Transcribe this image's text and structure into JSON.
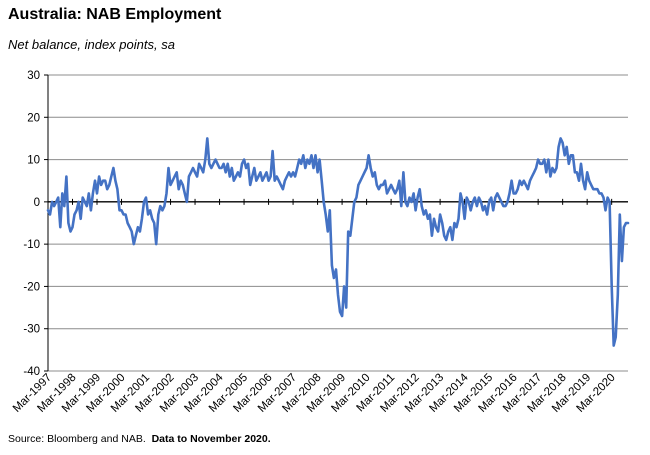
{
  "chart_data": {
    "type": "line",
    "title": "Australia: NAB Employment",
    "subtitle": "Net balance, index points, sa",
    "source_prefix": "Source: Bloomberg and NAB.",
    "source_note": "Data to November 2020.",
    "ylim": [
      -40,
      30
    ],
    "yticks": [
      30,
      20,
      10,
      0,
      -10,
      -20,
      -30,
      -40
    ],
    "x_range": [
      "1997-03",
      "2020-11"
    ],
    "xtick_labels": [
      "Mar-1997",
      "Mar-1998",
      "Mar-1999",
      "Mar-2000",
      "Mar-2001",
      "Mar-2002",
      "Mar-2003",
      "Mar-2004",
      "Mar-2005",
      "Mar-2006",
      "Mar-2007",
      "Mar-2008",
      "Mar-2009",
      "Mar-2010",
      "Mar-2011",
      "Mar-2012",
      "Mar-2013",
      "Mar-2014",
      "Mar-2015",
      "Mar-2016",
      "Mar-2017",
      "Mar-2018",
      "Mar-2019",
      "Mar-2020"
    ],
    "grid": true,
    "line_color": "#4472C4",
    "series": [
      {
        "x": [
          "1997-03",
          "1997-04",
          "1997-05",
          "1997-06",
          "1997-07",
          "1997-08",
          "1997-09",
          "1997-10",
          "1997-11",
          "1997-12",
          "1998-01",
          "1998-02",
          "1998-03",
          "1998-04",
          "1998-05",
          "1998-06",
          "1998-07",
          "1998-08",
          "1998-09",
          "1998-10",
          "1998-11",
          "1998-12",
          "1999-01",
          "1999-02",
          "1999-03",
          "1999-04",
          "1999-05",
          "1999-06",
          "1999-07",
          "1999-08",
          "1999-09",
          "1999-10",
          "1999-11",
          "1999-12",
          "2000-01",
          "2000-02",
          "2000-03",
          "2000-04",
          "2000-05",
          "2000-06",
          "2000-07",
          "2000-08",
          "2000-09",
          "2000-10",
          "2000-11",
          "2000-12",
          "2001-01",
          "2001-02",
          "2001-03",
          "2001-04",
          "2001-05",
          "2001-06",
          "2001-07",
          "2001-08",
          "2001-09",
          "2001-10",
          "2001-11",
          "2001-12",
          "2002-01",
          "2002-02",
          "2002-03",
          "2002-04",
          "2002-05",
          "2002-06",
          "2002-07",
          "2002-08",
          "2002-09",
          "2002-10",
          "2002-11",
          "2002-12",
          "2003-01",
          "2003-02",
          "2003-03",
          "2003-04",
          "2003-05",
          "2003-06",
          "2003-07",
          "2003-08",
          "2003-09",
          "2003-10",
          "2003-11",
          "2003-12",
          "2004-01",
          "2004-02",
          "2004-03",
          "2004-04",
          "2004-05",
          "2004-06",
          "2004-07",
          "2004-08",
          "2004-09",
          "2004-10",
          "2004-11",
          "2004-12",
          "2005-01",
          "2005-02",
          "2005-03",
          "2005-04",
          "2005-05",
          "2005-06",
          "2005-07",
          "2005-08",
          "2005-09",
          "2005-10",
          "2005-11",
          "2005-12",
          "2006-01",
          "2006-02",
          "2006-03",
          "2006-04",
          "2006-05",
          "2006-06",
          "2006-07",
          "2006-08",
          "2006-09",
          "2006-10",
          "2006-11",
          "2006-12",
          "2007-01",
          "2007-02",
          "2007-03",
          "2007-04",
          "2007-05",
          "2007-06",
          "2007-07",
          "2007-08",
          "2007-09",
          "2007-10",
          "2007-11",
          "2007-12",
          "2008-01",
          "2008-02",
          "2008-03",
          "2008-04",
          "2008-05",
          "2008-06",
          "2008-07",
          "2008-08",
          "2008-09",
          "2008-10",
          "2008-11",
          "2008-12",
          "2009-01",
          "2009-02",
          "2009-03",
          "2009-04",
          "2009-05",
          "2009-06",
          "2009-07",
          "2009-08",
          "2009-09",
          "2009-10",
          "2009-11",
          "2009-12",
          "2010-01",
          "2010-02",
          "2010-03",
          "2010-04",
          "2010-05",
          "2010-06",
          "2010-07",
          "2010-08",
          "2010-09",
          "2010-10",
          "2010-11",
          "2010-12",
          "2011-01",
          "2011-02",
          "2011-03",
          "2011-04",
          "2011-05",
          "2011-06",
          "2011-07",
          "2011-08",
          "2011-09",
          "2011-10",
          "2011-11",
          "2011-12",
          "2012-01",
          "2012-02",
          "2012-03",
          "2012-04",
          "2012-05",
          "2012-06",
          "2012-07",
          "2012-08",
          "2012-09",
          "2012-10",
          "2012-11",
          "2012-12",
          "2013-01",
          "2013-02",
          "2013-03",
          "2013-04",
          "2013-05",
          "2013-06",
          "2013-07",
          "2013-08",
          "2013-09",
          "2013-10",
          "2013-11",
          "2013-12",
          "2014-01",
          "2014-02",
          "2014-03",
          "2014-04",
          "2014-05",
          "2014-06",
          "2014-07",
          "2014-08",
          "2014-09",
          "2014-10",
          "2014-11",
          "2014-12",
          "2015-01",
          "2015-02",
          "2015-03",
          "2015-04",
          "2015-05",
          "2015-06",
          "2015-07",
          "2015-08",
          "2015-09",
          "2015-10",
          "2015-11",
          "2015-12",
          "2016-01",
          "2016-02",
          "2016-03",
          "2016-04",
          "2016-05",
          "2016-06",
          "2016-07",
          "2016-08",
          "2016-09",
          "2016-10",
          "2016-11",
          "2016-12",
          "2017-01",
          "2017-02",
          "2017-03",
          "2017-04",
          "2017-05",
          "2017-06",
          "2017-07",
          "2017-08",
          "2017-09",
          "2017-10",
          "2017-11",
          "2017-12",
          "2018-01",
          "2018-02",
          "2018-03",
          "2018-04",
          "2018-05",
          "2018-06",
          "2018-07",
          "2018-08",
          "2018-09",
          "2018-10",
          "2018-11",
          "2018-12",
          "2019-01",
          "2019-02",
          "2019-03",
          "2019-04",
          "2019-05",
          "2019-06",
          "2019-07",
          "2019-08",
          "2019-09",
          "2019-10",
          "2019-11",
          "2019-12",
          "2020-01",
          "2020-02",
          "2020-03",
          "2020-04",
          "2020-05",
          "2020-06",
          "2020-07",
          "2020-08",
          "2020-09",
          "2020-10",
          "2020-11"
        ],
        "values": [
          -2,
          -3,
          0,
          -1,
          0,
          1,
          -6,
          2,
          -1,
          6,
          -5,
          -7,
          -6,
          -3,
          -2,
          0,
          -4,
          1,
          0,
          -1,
          2,
          -2,
          2,
          5,
          2,
          6,
          4,
          5,
          5,
          3,
          4,
          6,
          8,
          5,
          3,
          -2,
          -2,
          -3,
          -3,
          -5,
          -6,
          -7,
          -10,
          -8,
          -6,
          -7,
          -4,
          0,
          1,
          -3,
          -2,
          -4,
          -5,
          -10,
          -3,
          -1,
          -2,
          -1,
          2,
          8,
          4,
          5,
          6,
          7,
          3,
          5,
          4,
          2,
          0,
          6,
          7,
          8,
          7,
          6,
          9,
          8,
          7,
          10,
          15,
          9,
          8,
          9,
          10,
          9,
          8,
          8,
          9,
          7,
          9,
          6,
          8,
          5,
          6,
          7,
          6,
          9,
          10,
          8,
          9,
          4,
          6,
          8,
          5,
          6,
          7,
          5,
          6,
          7,
          5,
          6,
          12,
          5,
          6,
          5,
          4,
          3,
          5,
          6,
          7,
          6,
          7,
          6,
          8,
          10,
          9,
          11,
          8,
          10,
          9,
          11,
          8,
          11,
          7,
          10,
          5,
          0,
          -3,
          -7,
          -2,
          -15,
          -18,
          -16,
          -22,
          -26,
          -27,
          -20,
          -25,
          -7,
          -8,
          -4,
          0,
          1,
          4,
          5,
          6,
          7,
          8,
          11,
          8,
          6,
          7,
          4,
          3,
          4,
          4,
          5,
          2,
          3,
          4,
          3,
          2,
          3,
          5,
          -1,
          7,
          0,
          -1,
          1,
          0,
          2,
          -2,
          1,
          3,
          -1,
          -3,
          -2,
          -4,
          -3,
          -8,
          -4,
          -6,
          -7,
          -3,
          -5,
          -8,
          -9,
          -7,
          -6,
          -9,
          -5,
          -6,
          -4,
          2,
          0,
          -4,
          1,
          0,
          -2,
          0,
          1,
          -1,
          1,
          0,
          -2,
          -1,
          -3,
          0,
          1,
          -2,
          1,
          2,
          1,
          0,
          -1,
          -1,
          0,
          2,
          5,
          2,
          2,
          3,
          5,
          4,
          5,
          4,
          3,
          5,
          6,
          7,
          8,
          10,
          9,
          9,
          10,
          7,
          10,
          6,
          8,
          7,
          8,
          13,
          15,
          14,
          11,
          13,
          9,
          11,
          11,
          7,
          7,
          5,
          9,
          5,
          3,
          7,
          5,
          4,
          3,
          3,
          3,
          2,
          2,
          1,
          -2,
          1,
          0,
          -20,
          -34,
          -32,
          -22,
          -3,
          -14,
          -6,
          -5,
          -5
        ]
      }
    ]
  }
}
